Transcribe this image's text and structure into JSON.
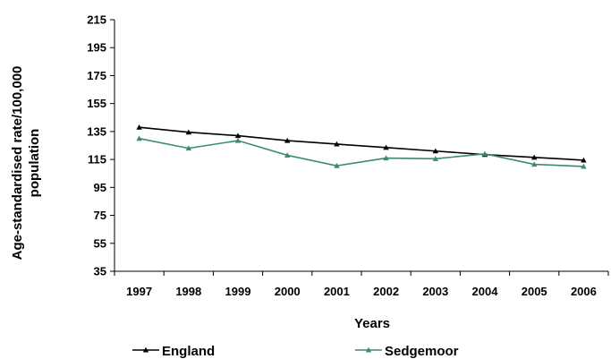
{
  "chart_data": {
    "type": "line",
    "xlabel": "Years",
    "ylabel_lines": [
      "Age-standardised rate/100,000",
      "population"
    ],
    "categories": [
      "1997",
      "1998",
      "1999",
      "2000",
      "2001",
      "2002",
      "2003",
      "2004",
      "2005",
      "2006"
    ],
    "yticks": [
      "215",
      "195",
      "175",
      "155",
      "135",
      "115",
      "95",
      "75",
      "55",
      "35"
    ],
    "ylim": [
      35,
      215
    ],
    "grid": false,
    "legend_position": "bottom",
    "series": [
      {
        "name": "England",
        "color": "#000000",
        "marker": "triangle",
        "values": [
          138,
          134.5,
          132,
          128.5,
          126,
          123.5,
          121,
          118.5,
          116.5,
          114.5
        ]
      },
      {
        "name": "Sedgemoor",
        "color": "#3d8a73",
        "marker": "triangle",
        "values": [
          130,
          123,
          128.5,
          118,
          110.5,
          116,
          115.5,
          119,
          111.5,
          110
        ]
      }
    ]
  }
}
